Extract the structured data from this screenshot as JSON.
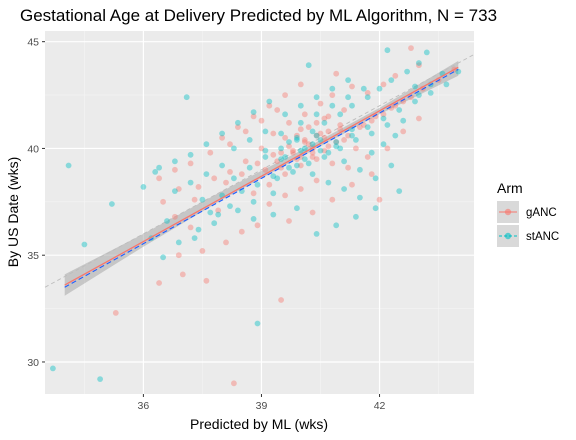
{
  "chart_data": {
    "type": "scatter",
    "title": "Gestational Age at Delivery Predicted by ML Algorithm, N = 733",
    "xlabel": "Predicted by ML (wks)",
    "ylabel": "By US Date (wks)",
    "xlim": [
      33.5,
      44.4
    ],
    "ylim": [
      28.5,
      45.5
    ],
    "xticks": [
      36,
      39,
      42
    ],
    "yticks": [
      30,
      35,
      40,
      45
    ],
    "xtick_labels": [
      "36",
      "39",
      "42"
    ],
    "ytick_labels": [
      "30",
      "35",
      "40",
      "45"
    ],
    "grid": true,
    "legend": {
      "title": "Arm",
      "placement": "right",
      "entries": [
        {
          "name": "gANC",
          "color": "#F8766D"
        },
        {
          "name": "stANC",
          "color": "#00BFC4"
        }
      ]
    },
    "reference_line": {
      "slope": 1,
      "intercept": 0,
      "style": "dashed",
      "color": "#bdbdbd"
    },
    "regression": {
      "series": [
        {
          "name": "gANC",
          "color": "#F8766D",
          "x": [
            34.0,
            44.0
          ],
          "y": [
            33.6,
            43.8
          ]
        },
        {
          "name": "stANC",
          "color": "#1f5cff",
          "x": [
            34.0,
            44.0
          ],
          "y": [
            33.5,
            43.7
          ]
        }
      ],
      "ribbon": {
        "x": [
          34.0,
          36.0,
          38.0,
          40.0,
          42.0,
          44.0
        ],
        "lower": [
          33.1,
          35.4,
          37.6,
          39.6,
          41.6,
          43.4
        ],
        "upper": [
          34.1,
          36.0,
          38.0,
          39.9,
          41.9,
          44.1
        ]
      }
    },
    "series": [
      {
        "name": "gANC",
        "color": "#F8766D",
        "points": [
          [
            35.3,
            32.3
          ],
          [
            36.4,
            33.7
          ],
          [
            37.0,
            34.1
          ],
          [
            37.6,
            33.8
          ],
          [
            38.3,
            29.0
          ],
          [
            39.5,
            32.9
          ],
          [
            42.8,
            44.7
          ],
          [
            42.0,
            37.6
          ],
          [
            38.5,
            36.1
          ],
          [
            37.9,
            37.1
          ],
          [
            37.3,
            37.6
          ],
          [
            36.9,
            38.1
          ],
          [
            38.8,
            37.9
          ],
          [
            39.2,
            38.3
          ],
          [
            39.6,
            38.8
          ],
          [
            40.0,
            39.2
          ],
          [
            40.3,
            39.6
          ],
          [
            40.6,
            39.9
          ],
          [
            40.9,
            40.3
          ],
          [
            41.2,
            40.6
          ],
          [
            41.5,
            41.0
          ],
          [
            41.8,
            41.3
          ],
          [
            42.1,
            41.6
          ],
          [
            42.4,
            42.0
          ],
          [
            42.8,
            42.4
          ],
          [
            43.1,
            42.8
          ],
          [
            43.5,
            43.2
          ],
          [
            43.9,
            43.7
          ],
          [
            39.0,
            40.0
          ],
          [
            39.3,
            40.7
          ],
          [
            39.7,
            41.2
          ],
          [
            40.1,
            41.6
          ],
          [
            40.5,
            42.1
          ],
          [
            40.8,
            42.5
          ],
          [
            39.4,
            39.4
          ],
          [
            39.8,
            39.8
          ],
          [
            40.2,
            40.2
          ],
          [
            40.6,
            40.5
          ],
          [
            41.0,
            40.9
          ],
          [
            39.6,
            40.5
          ],
          [
            40.0,
            40.9
          ],
          [
            40.4,
            41.2
          ],
          [
            40.7,
            41.5
          ],
          [
            41.1,
            41.8
          ],
          [
            39.1,
            39.0
          ],
          [
            39.5,
            39.1
          ],
          [
            39.9,
            39.5
          ],
          [
            40.3,
            39.8
          ],
          [
            40.7,
            40.1
          ],
          [
            41.1,
            40.4
          ],
          [
            41.4,
            40.0
          ],
          [
            41.7,
            39.6
          ],
          [
            39.2,
            37.4
          ],
          [
            39.6,
            37.8
          ],
          [
            40.0,
            38.1
          ],
          [
            40.4,
            38.5
          ],
          [
            38.6,
            39.4
          ],
          [
            38.2,
            38.9
          ],
          [
            37.8,
            38.6
          ],
          [
            37.4,
            38.2
          ],
          [
            36.8,
            36.8
          ],
          [
            37.2,
            36.3
          ],
          [
            36.5,
            37.5
          ],
          [
            38.0,
            40.5
          ],
          [
            38.4,
            41.0
          ],
          [
            38.8,
            41.5
          ],
          [
            39.2,
            42.0
          ],
          [
            39.6,
            42.5
          ],
          [
            40.0,
            43.0
          ],
          [
            40.9,
            43.5
          ],
          [
            41.3,
            42.9
          ],
          [
            41.7,
            42.6
          ],
          [
            42.1,
            43.0
          ],
          [
            42.4,
            43.4
          ],
          [
            43.0,
            43.9
          ],
          [
            42.6,
            40.8
          ],
          [
            43.0,
            41.4
          ],
          [
            42.2,
            40.0
          ],
          [
            41.8,
            38.8
          ],
          [
            41.3,
            38.3
          ],
          [
            40.8,
            37.6
          ],
          [
            40.3,
            37.0
          ],
          [
            39.7,
            36.6
          ],
          [
            38.9,
            36.4
          ],
          [
            38.1,
            35.6
          ],
          [
            37.5,
            35.2
          ],
          [
            36.9,
            35.0
          ],
          [
            40.5,
            40.7
          ],
          [
            40.1,
            40.4
          ],
          [
            39.7,
            40.1
          ],
          [
            39.3,
            39.7
          ],
          [
            38.9,
            39.3
          ],
          [
            38.5,
            38.8
          ],
          [
            38.1,
            38.4
          ],
          [
            40.4,
            39.5
          ],
          [
            40.8,
            39.3
          ],
          [
            41.2,
            39.1
          ],
          [
            39.9,
            40.6
          ],
          [
            40.2,
            41.0
          ],
          [
            40.6,
            41.4
          ],
          [
            39.4,
            41.8
          ],
          [
            39.0,
            41.3
          ],
          [
            38.6,
            40.8
          ],
          [
            38.2,
            40.2
          ],
          [
            37.7,
            39.8
          ],
          [
            37.2,
            39.3
          ],
          [
            36.8,
            39.0
          ],
          [
            36.4,
            38.6
          ],
          [
            41.6,
            41.1
          ],
          [
            41.9,
            41.5
          ],
          [
            42.3,
            41.9
          ],
          [
            42.6,
            42.2
          ],
          [
            40.0,
            39.6
          ],
          [
            40.3,
            40.0
          ],
          [
            39.8,
            39.9
          ],
          [
            40.1,
            40.3
          ],
          [
            40.4,
            40.6
          ],
          [
            40.7,
            40.8
          ],
          [
            41.0,
            41.1
          ],
          [
            39.5,
            39.8
          ]
        ]
      },
      {
        "name": "stANC",
        "color": "#00BFC4",
        "points": [
          [
            33.7,
            29.7
          ],
          [
            34.1,
            39.2
          ],
          [
            34.5,
            35.5
          ],
          [
            34.9,
            29.2
          ],
          [
            35.2,
            37.4
          ],
          [
            36.0,
            38.2
          ],
          [
            36.3,
            38.9
          ],
          [
            36.6,
            36.6
          ],
          [
            37.1,
            42.4
          ],
          [
            38.9,
            31.8
          ],
          [
            37.4,
            36.2
          ],
          [
            37.7,
            37.0
          ],
          [
            38.0,
            37.8
          ],
          [
            38.3,
            38.6
          ],
          [
            38.7,
            39.1
          ],
          [
            39.1,
            39.6
          ],
          [
            39.5,
            40.0
          ],
          [
            39.9,
            40.4
          ],
          [
            40.3,
            40.8
          ],
          [
            40.6,
            41.2
          ],
          [
            41.0,
            41.6
          ],
          [
            41.3,
            42.0
          ],
          [
            41.7,
            42.4
          ],
          [
            42.0,
            42.8
          ],
          [
            42.3,
            43.2
          ],
          [
            42.7,
            43.6
          ],
          [
            43.0,
            44.0
          ],
          [
            43.2,
            44.5
          ],
          [
            42.2,
            44.6
          ],
          [
            42.9,
            42.9
          ],
          [
            43.6,
            43.5
          ],
          [
            42.5,
            38.0
          ],
          [
            41.9,
            37.2
          ],
          [
            41.4,
            36.8
          ],
          [
            40.9,
            36.4
          ],
          [
            40.4,
            36.0
          ],
          [
            39.9,
            37.2
          ],
          [
            39.3,
            36.9
          ],
          [
            38.8,
            36.7
          ],
          [
            38.2,
            37.3
          ],
          [
            37.8,
            36.5
          ],
          [
            37.3,
            35.8
          ],
          [
            36.9,
            35.6
          ],
          [
            36.5,
            34.9
          ],
          [
            36.2,
            35.8
          ],
          [
            39.4,
            38.6
          ],
          [
            39.8,
            38.9
          ],
          [
            40.2,
            39.3
          ],
          [
            40.6,
            39.6
          ],
          [
            41.0,
            40.0
          ],
          [
            41.4,
            40.4
          ],
          [
            41.8,
            40.7
          ],
          [
            42.2,
            41.1
          ],
          [
            39.6,
            41.6
          ],
          [
            40.0,
            42.0
          ],
          [
            40.4,
            42.4
          ],
          [
            40.8,
            42.8
          ],
          [
            41.2,
            43.2
          ],
          [
            40.2,
            43.9
          ],
          [
            39.2,
            42.2
          ],
          [
            38.8,
            41.7
          ],
          [
            38.4,
            41.2
          ],
          [
            38.0,
            40.7
          ],
          [
            37.6,
            40.2
          ],
          [
            37.2,
            39.7
          ],
          [
            36.8,
            39.4
          ],
          [
            36.4,
            39.1
          ],
          [
            38.5,
            38.0
          ],
          [
            38.9,
            38.3
          ],
          [
            39.3,
            38.7
          ],
          [
            39.7,
            39.1
          ],
          [
            40.1,
            39.5
          ],
          [
            40.5,
            39.9
          ],
          [
            40.9,
            40.3
          ],
          [
            41.3,
            40.6
          ],
          [
            41.7,
            41.0
          ],
          [
            42.1,
            41.4
          ],
          [
            42.5,
            41.8
          ],
          [
            42.9,
            42.2
          ],
          [
            43.3,
            42.6
          ],
          [
            43.7,
            43.0
          ],
          [
            44.0,
            43.6
          ],
          [
            40.0,
            41.2
          ],
          [
            40.4,
            41.6
          ],
          [
            40.8,
            42.0
          ],
          [
            41.2,
            42.4
          ],
          [
            41.6,
            42.8
          ],
          [
            39.1,
            40.8
          ],
          [
            39.5,
            40.7
          ],
          [
            39.9,
            40.5
          ],
          [
            40.3,
            40.2
          ],
          [
            40.7,
            39.8
          ],
          [
            41.1,
            39.4
          ],
          [
            41.5,
            39.0
          ],
          [
            41.9,
            38.6
          ],
          [
            42.3,
            39.2
          ],
          [
            38.0,
            39.2
          ],
          [
            37.6,
            38.8
          ],
          [
            37.2,
            38.4
          ],
          [
            36.8,
            38.0
          ],
          [
            38.3,
            40.0
          ],
          [
            38.7,
            40.4
          ],
          [
            39.1,
            39.9
          ],
          [
            39.5,
            39.5
          ],
          [
            39.9,
            39.2
          ],
          [
            40.3,
            38.8
          ],
          [
            40.7,
            38.4
          ],
          [
            41.1,
            38.1
          ],
          [
            41.5,
            37.7
          ],
          [
            39.3,
            37.9
          ],
          [
            38.8,
            37.5
          ],
          [
            38.4,
            37.1
          ],
          [
            37.9,
            36.9
          ],
          [
            37.5,
            37.6
          ],
          [
            41.8,
            39.8
          ],
          [
            42.1,
            40.2
          ],
          [
            42.4,
            40.6
          ],
          [
            42.6,
            41.3
          ],
          [
            43.0,
            42.5
          ],
          [
            43.3,
            43.0
          ],
          [
            39.7,
            40.3
          ],
          [
            40.1,
            40.0
          ],
          [
            40.5,
            40.4
          ],
          [
            40.9,
            40.1
          ],
          [
            41.3,
            40.9
          ],
          [
            39.6,
            39.6
          ],
          [
            40.0,
            39.9
          ],
          [
            40.4,
            40.6
          ]
        ]
      }
    ]
  }
}
